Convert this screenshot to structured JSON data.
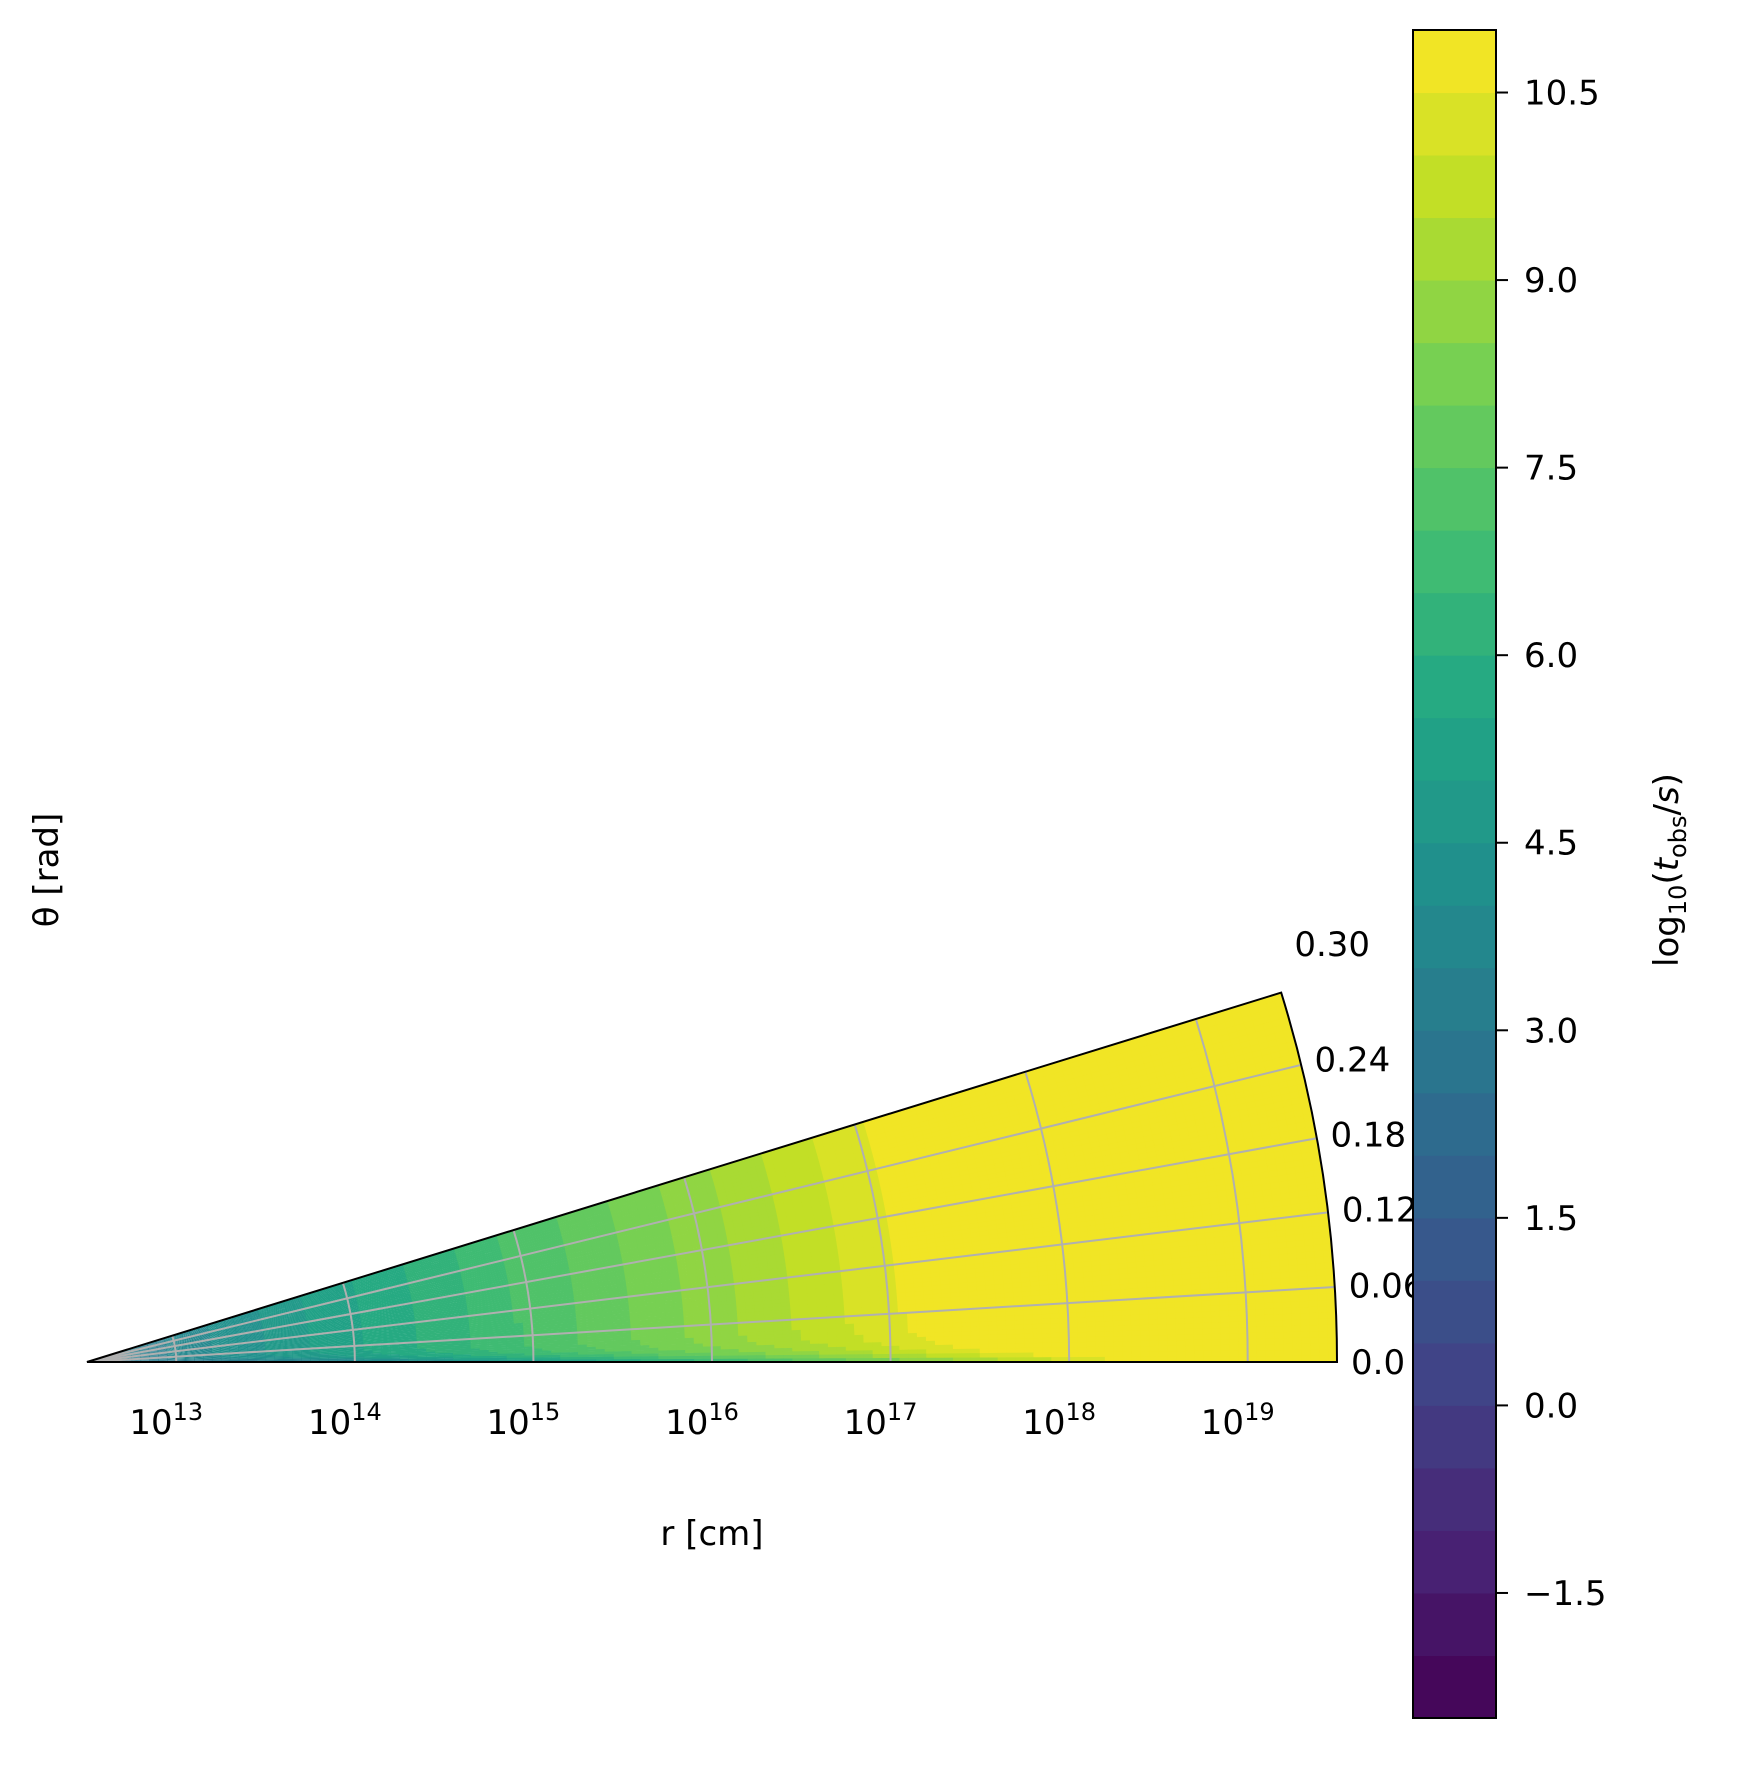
{
  "chart_data": {
    "type": "heatmap",
    "subtype": "polar-contourf",
    "colormap": "viridis",
    "theta_label": "θ [rad]",
    "r_label": "r [cm]",
    "r_scale": "log",
    "r_exp_range": [
      12.5,
      19.5
    ],
    "theta_range": [
      0.0,
      0.3
    ],
    "theta_tick_labels": [
      "0.0",
      "0.06",
      "0.12",
      "0.18",
      "0.24",
      "0.30"
    ],
    "r_tick_base": "10",
    "r_tick_exponents": [
      "13",
      "14",
      "15",
      "16",
      "17",
      "18",
      "19"
    ],
    "colorbar": {
      "label": "log10(t_obs/s)",
      "range": [
        -2.5,
        11.0
      ],
      "n_levels": 27,
      "ticks": [
        "−1.5",
        "0.0",
        "1.5",
        "3.0",
        "4.5",
        "6.0",
        "7.5",
        "9.0",
        "10.5"
      ]
    },
    "grid": true
  }
}
